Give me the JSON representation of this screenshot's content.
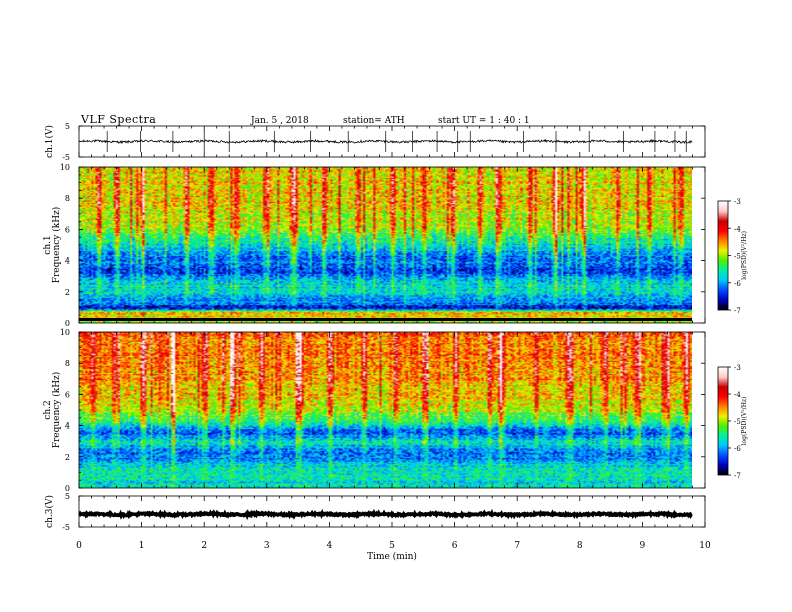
{
  "header": {
    "title": "VLF  Spectra",
    "date": "Jan. 5 , 2018",
    "station": "station= ATH",
    "start_ut": "start  UT  =   1 : 40 : 1"
  },
  "colors": {
    "background": "#ffffff",
    "axis": "#000000",
    "colormap": [
      "#000000",
      "#0000c8",
      "#0050ff",
      "#00c8ff",
      "#00f0a0",
      "#50f000",
      "#f0f000",
      "#ff8000",
      "#ff0000",
      "#c80000",
      "#ffc8c8",
      "#ffffff"
    ]
  },
  "chart_data": [
    {
      "type": "line",
      "panel": "ch1-waveform",
      "ylabel": "ch.1(V)",
      "ylim": [
        -5,
        5
      ],
      "y_ticklabels": [
        "5",
        "-5"
      ],
      "xlim": [
        0,
        10
      ],
      "trace_level": 0.0,
      "trace_noise": 0.35,
      "spike_times": [
        0.45,
        0.98,
        1.5,
        2.0,
        2.4,
        3.12,
        3.7,
        4.3,
        4.9,
        5.33,
        5.72,
        6.05,
        6.25,
        7.1,
        7.62,
        8.15,
        8.7,
        9.2,
        9.52,
        9.7
      ]
    },
    {
      "type": "heatmap",
      "panel": "ch1-spectrogram",
      "ylabel_top": "ch.1",
      "ylabel": "Frequency  (kHz)",
      "ylim": [
        0,
        10
      ],
      "y_ticklabels": [
        "0",
        "2",
        "4",
        "6",
        "8",
        "10"
      ],
      "xlim": [
        0,
        9.8
      ],
      "colorbar": {
        "label": "log(PSD)(V²/Hz)",
        "range": [
          -7,
          -3
        ],
        "ticklabels": [
          "-3",
          "-4",
          "-5",
          "-6",
          "-7"
        ]
      },
      "level_by_freq_khz": [
        [
          0,
          -5.1
        ],
        [
          0.6,
          -4.6
        ],
        [
          0.9,
          -6.6
        ],
        [
          1.5,
          -6.0
        ],
        [
          2.4,
          -5.8
        ],
        [
          3.2,
          -6.5
        ],
        [
          4.2,
          -6.3
        ],
        [
          5.3,
          -5.8
        ],
        [
          6.0,
          -5.3
        ],
        [
          7.5,
          -5.0
        ],
        [
          10,
          -5.0
        ]
      ],
      "burst_times": [
        0.3,
        0.6,
        1.0,
        1.7,
        2.1,
        2.5,
        3.0,
        3.4,
        3.9,
        4.45,
        5.0,
        5.5,
        5.95,
        6.4,
        6.7,
        7.2,
        7.6,
        8.05,
        8.6,
        9.1,
        9.6
      ]
    },
    {
      "type": "heatmap",
      "panel": "ch2-spectrogram",
      "ylabel_top": "ch.2",
      "ylabel": "Frequency  (kHz)",
      "ylim": [
        0,
        10
      ],
      "y_ticklabels": [
        "0",
        "2",
        "4",
        "6",
        "8",
        "10"
      ],
      "xlim": [
        0,
        9.8
      ],
      "colorbar": {
        "label": "log(PSD)(V²/Hz)",
        "range": [
          -7,
          -3
        ],
        "ticklabels": [
          "-3",
          "-4",
          "-5",
          "-6",
          "-7"
        ]
      },
      "level_by_freq_khz": [
        [
          0,
          -5.8
        ],
        [
          1.0,
          -5.6
        ],
        [
          2.1,
          -6.3
        ],
        [
          3.0,
          -5.8
        ],
        [
          3.6,
          -6.5
        ],
        [
          4.3,
          -5.6
        ],
        [
          5.2,
          -5.1
        ],
        [
          6.8,
          -4.8
        ],
        [
          10,
          -4.6
        ]
      ],
      "burst_times": [
        0.2,
        0.55,
        1.0,
        1.5,
        2.0,
        2.45,
        2.9,
        3.5,
        4.0,
        4.55,
        5.05,
        5.5,
        6.0,
        6.55,
        6.75,
        7.3,
        7.8,
        8.4,
        8.9,
        9.4,
        9.7
      ]
    },
    {
      "type": "line",
      "panel": "ch3-waveform",
      "ylabel": "ch.3(V)",
      "ylim": [
        -5,
        5
      ],
      "y_ticklabels": [
        "5",
        "-5"
      ],
      "xlim": [
        0,
        10
      ],
      "trace_level": -0.9,
      "trace_noise": 0.3,
      "spike_times": []
    }
  ],
  "x_axis": {
    "label": "Time  (min)",
    "ticklabels": [
      "0",
      "1",
      "2",
      "3",
      "4",
      "5",
      "6",
      "7",
      "8",
      "9",
      "10"
    ]
  }
}
